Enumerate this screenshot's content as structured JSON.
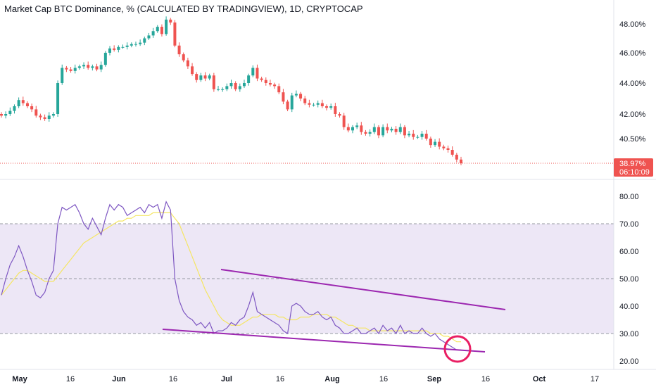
{
  "title": "Market Cap BTC Dominance, % (CALCULATED BY TRADINGVIEW), 1D, CRYPTOCAP",
  "colors": {
    "up": "#26a69a",
    "down": "#ef5350",
    "rsi": "#7e57c2",
    "rsi_ma": "#f5e663",
    "trendline": "#9c27b0",
    "marker": "#e91e63",
    "band": "#ede7f6"
  },
  "chart_data": [
    {
      "type": "candlestick",
      "title": "Market Cap BTC Dominance, % (CALCULATED BY TRADINGVIEW), 1D, CRYPTOCAP",
      "y_ticks": [
        "48.00%",
        "46.00%",
        "44.00%",
        "42.00%",
        "40.50%"
      ],
      "y_log_scale": true,
      "last_price": "38.97%",
      "countdown": "06:10:09",
      "x_ticks": [
        {
          "label": "May",
          "month": true
        },
        {
          "label": "16",
          "month": false
        },
        {
          "label": "Jun",
          "month": true
        },
        {
          "label": "16",
          "month": false
        },
        {
          "label": "Jul",
          "month": true
        },
        {
          "label": "16",
          "month": false
        },
        {
          "label": "Aug",
          "month": true
        },
        {
          "label": "16",
          "month": false
        },
        {
          "label": "Sep",
          "month": true
        },
        {
          "label": "16",
          "month": false
        },
        {
          "label": "Oct",
          "month": true
        },
        {
          "label": "17",
          "month": false
        }
      ],
      "close": [
        41.9,
        42.0,
        42.2,
        42.5,
        42.9,
        42.7,
        42.5,
        42.3,
        41.9,
        41.8,
        41.7,
        41.9,
        42.0,
        44.0,
        45.0,
        44.9,
        44.8,
        45.0,
        45.1,
        45.2,
        45.0,
        45.1,
        44.9,
        45.2,
        46.0,
        46.3,
        46.2,
        46.4,
        46.4,
        46.5,
        46.6,
        46.6,
        46.7,
        47.0,
        47.2,
        47.5,
        47.8,
        47.3,
        48.3,
        48.1,
        46.5,
        45.9,
        45.5,
        45.1,
        44.6,
        44.2,
        44.5,
        44.3,
        44.5,
        43.6,
        43.6,
        43.6,
        43.8,
        44.0,
        43.6,
        43.8,
        44.0,
        44.5,
        45.0,
        44.3,
        44.2,
        44.0,
        43.9,
        43.8,
        43.4,
        42.8,
        42.3,
        43.2,
        43.3,
        43.0,
        42.7,
        42.6,
        42.6,
        42.7,
        42.5,
        42.4,
        42.5,
        42.0,
        41.9,
        41.2,
        41.0,
        41.2,
        41.3,
        40.9,
        40.8,
        40.9,
        41.2,
        40.7,
        41.2,
        41.0,
        41.1,
        40.9,
        41.2,
        40.7,
        40.8,
        40.6,
        40.6,
        40.8,
        40.5,
        40.1,
        40.3,
        40.0,
        39.9,
        39.8,
        39.5,
        39.2,
        38.97
      ],
      "ohlc_note": "close series; opens = previous close"
    },
    {
      "type": "line",
      "series": [
        {
          "name": "RSI",
          "values": [
            44,
            50,
            55,
            58,
            62,
            58,
            53,
            49,
            44,
            43,
            45,
            50,
            53,
            70,
            76,
            75,
            76,
            77,
            74,
            70,
            68,
            72,
            69,
            66,
            72,
            77,
            75,
            77,
            76,
            73,
            74,
            75,
            76,
            74,
            77,
            76,
            77,
            72,
            78,
            75,
            50,
            42,
            38,
            36,
            35,
            33,
            34,
            32,
            34,
            30,
            31,
            31,
            32,
            34,
            33,
            35,
            36,
            40,
            45,
            38,
            37,
            36,
            35,
            34,
            33,
            31,
            30,
            40,
            41,
            40,
            38,
            37,
            37,
            38,
            36,
            35,
            36,
            33,
            32,
            30,
            30,
            31,
            32,
            30,
            30,
            31,
            32,
            30,
            33,
            31,
            32,
            30,
            33,
            30,
            31,
            30,
            30,
            32,
            30,
            29,
            30,
            28,
            27,
            26,
            25,
            24,
            24
          ]
        },
        {
          "name": "RSI-based MA",
          "values": [
            44,
            46,
            48,
            50,
            52,
            53,
            53,
            52,
            51,
            50,
            49,
            49,
            49,
            51,
            53,
            55,
            57,
            59,
            61,
            63,
            64,
            65,
            66,
            67,
            68,
            69,
            70,
            71,
            71,
            72,
            72,
            73,
            73,
            73,
            73,
            74,
            74,
            74,
            74,
            74,
            72,
            70,
            66,
            62,
            58,
            54,
            50,
            46,
            43,
            40,
            37,
            35,
            34,
            33,
            33,
            33,
            34,
            35,
            36,
            36,
            37,
            37,
            37,
            37,
            36,
            36,
            35,
            35,
            35,
            36,
            36,
            36,
            37,
            37,
            37,
            37,
            36,
            36,
            35,
            34,
            33,
            33,
            32,
            32,
            32,
            31,
            31,
            31,
            31,
            31,
            31,
            31,
            31,
            31,
            31,
            31,
            31,
            31,
            31,
            30,
            30,
            30,
            29,
            29,
            28,
            27,
            27
          ]
        }
      ],
      "y_ticks": [
        "80.00",
        "70.00",
        "60.00",
        "50.00",
        "40.00",
        "30.00",
        "20.00"
      ],
      "ylim": [
        18,
        82
      ],
      "band": [
        30,
        70
      ],
      "dashed_levels": [
        70,
        50,
        30
      ]
    }
  ]
}
